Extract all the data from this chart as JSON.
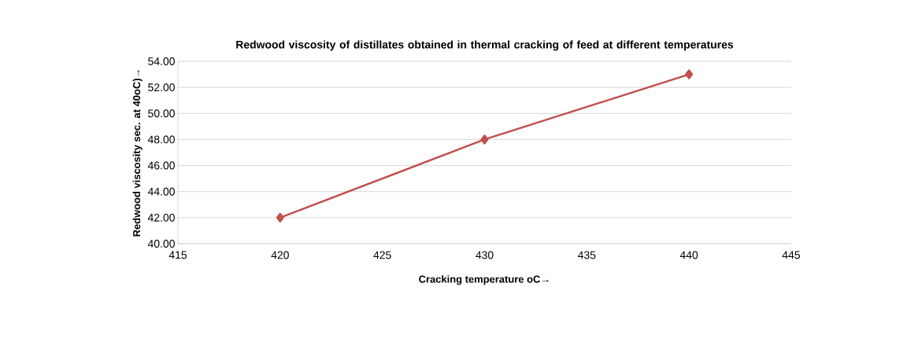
{
  "chart_data": {
    "type": "line",
    "title": "Redwood viscosity of distillates obtained in thermal cracking of feed at different temperatures",
    "xlabel": "Cracking temperature oC→",
    "ylabel": "Redwood viscosity sec. at 40oC)→",
    "x": [
      420,
      430,
      440
    ],
    "series": [
      {
        "color": "#c0504d",
        "values": [
          42,
          48,
          53
        ]
      }
    ],
    "xlim": [
      415,
      445
    ],
    "xticks": [
      415,
      420,
      425,
      430,
      435,
      440,
      445
    ],
    "ylim": [
      40,
      54
    ],
    "yticks": [
      {
        "value": 40,
        "label": "40.00"
      },
      {
        "value": 42,
        "label": "42.00"
      },
      {
        "value": 44,
        "label": "44.00"
      },
      {
        "value": 46,
        "label": "46.00"
      },
      {
        "value": 48,
        "label": "48.00"
      },
      {
        "value": 50,
        "label": "50.00"
      },
      {
        "value": 52,
        "label": "52.00"
      },
      {
        "value": 54,
        "label": "54.00"
      }
    ],
    "grid": "y",
    "marker": "diamond",
    "line_style": "solid"
  }
}
